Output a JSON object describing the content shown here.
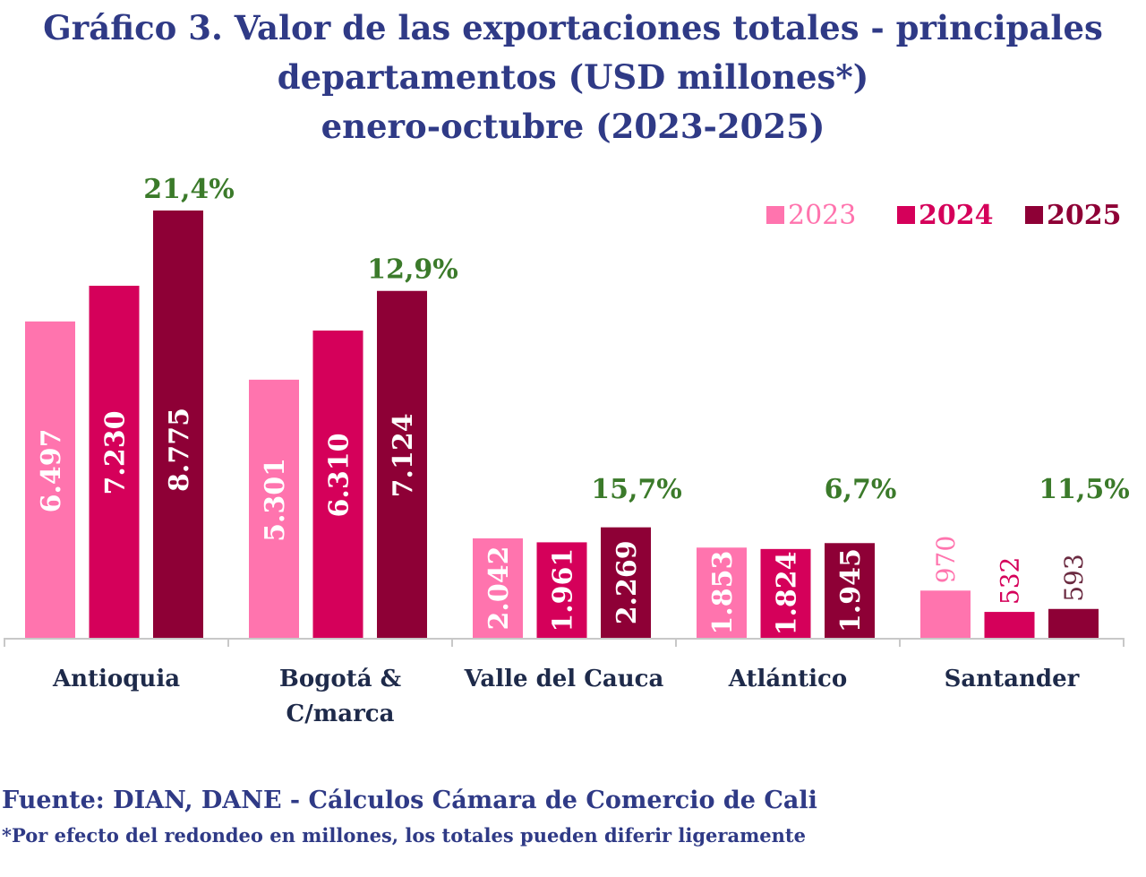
{
  "chart_data": {
    "type": "bar",
    "title": [
      "Gráfico 3. Valor de las exportaciones totales - principales",
      "departamentos (USD millones*)",
      "enero-octubre (2023-2025)"
    ],
    "categories": [
      "Antioquia",
      "Bogotá & C/marca",
      "Valle del Cauca",
      "Atlántico",
      "Santander"
    ],
    "category_lines": [
      [
        "Antioquia"
      ],
      [
        "Bogotá &",
        "C/marca"
      ],
      [
        "Valle del Cauca"
      ],
      [
        "Atlántico"
      ],
      [
        "Santander"
      ]
    ],
    "series": [
      {
        "name": "2023",
        "color": "#ff74ae",
        "values": [
          6497,
          5301,
          2042,
          1853,
          970
        ],
        "labels": [
          "6.497",
          "5.301",
          "2.042",
          "1.853",
          "970"
        ]
      },
      {
        "name": "2024",
        "color": "#d5005a",
        "values": [
          7230,
          6310,
          1961,
          1824,
          532
        ],
        "labels": [
          "7.230",
          "6.310",
          "1.961",
          "1.824",
          "532"
        ]
      },
      {
        "name": "2025",
        "color": "#8e0036",
        "values": [
          8775,
          7124,
          2269,
          1945,
          593
        ],
        "labels": [
          "8.775",
          "7.124",
          "2.269",
          "1.945",
          "593"
        ]
      }
    ],
    "growth_labels": [
      "21,4%",
      "12,9%",
      "15,7%",
      "6,7%",
      "11,5%"
    ],
    "growth_color": "#3b7a2a",
    "ylim": [
      0,
      9000
    ],
    "y_axis_visible": false,
    "grid": false,
    "legend_position": "top-right",
    "xlabel": "",
    "ylabel": ""
  },
  "source": "Fuente: DIAN, DANE - Cálculos Cámara de Comercio de Cali",
  "note": "*Por efecto del redondeo en millones, los totales pueden diferir ligeramente"
}
